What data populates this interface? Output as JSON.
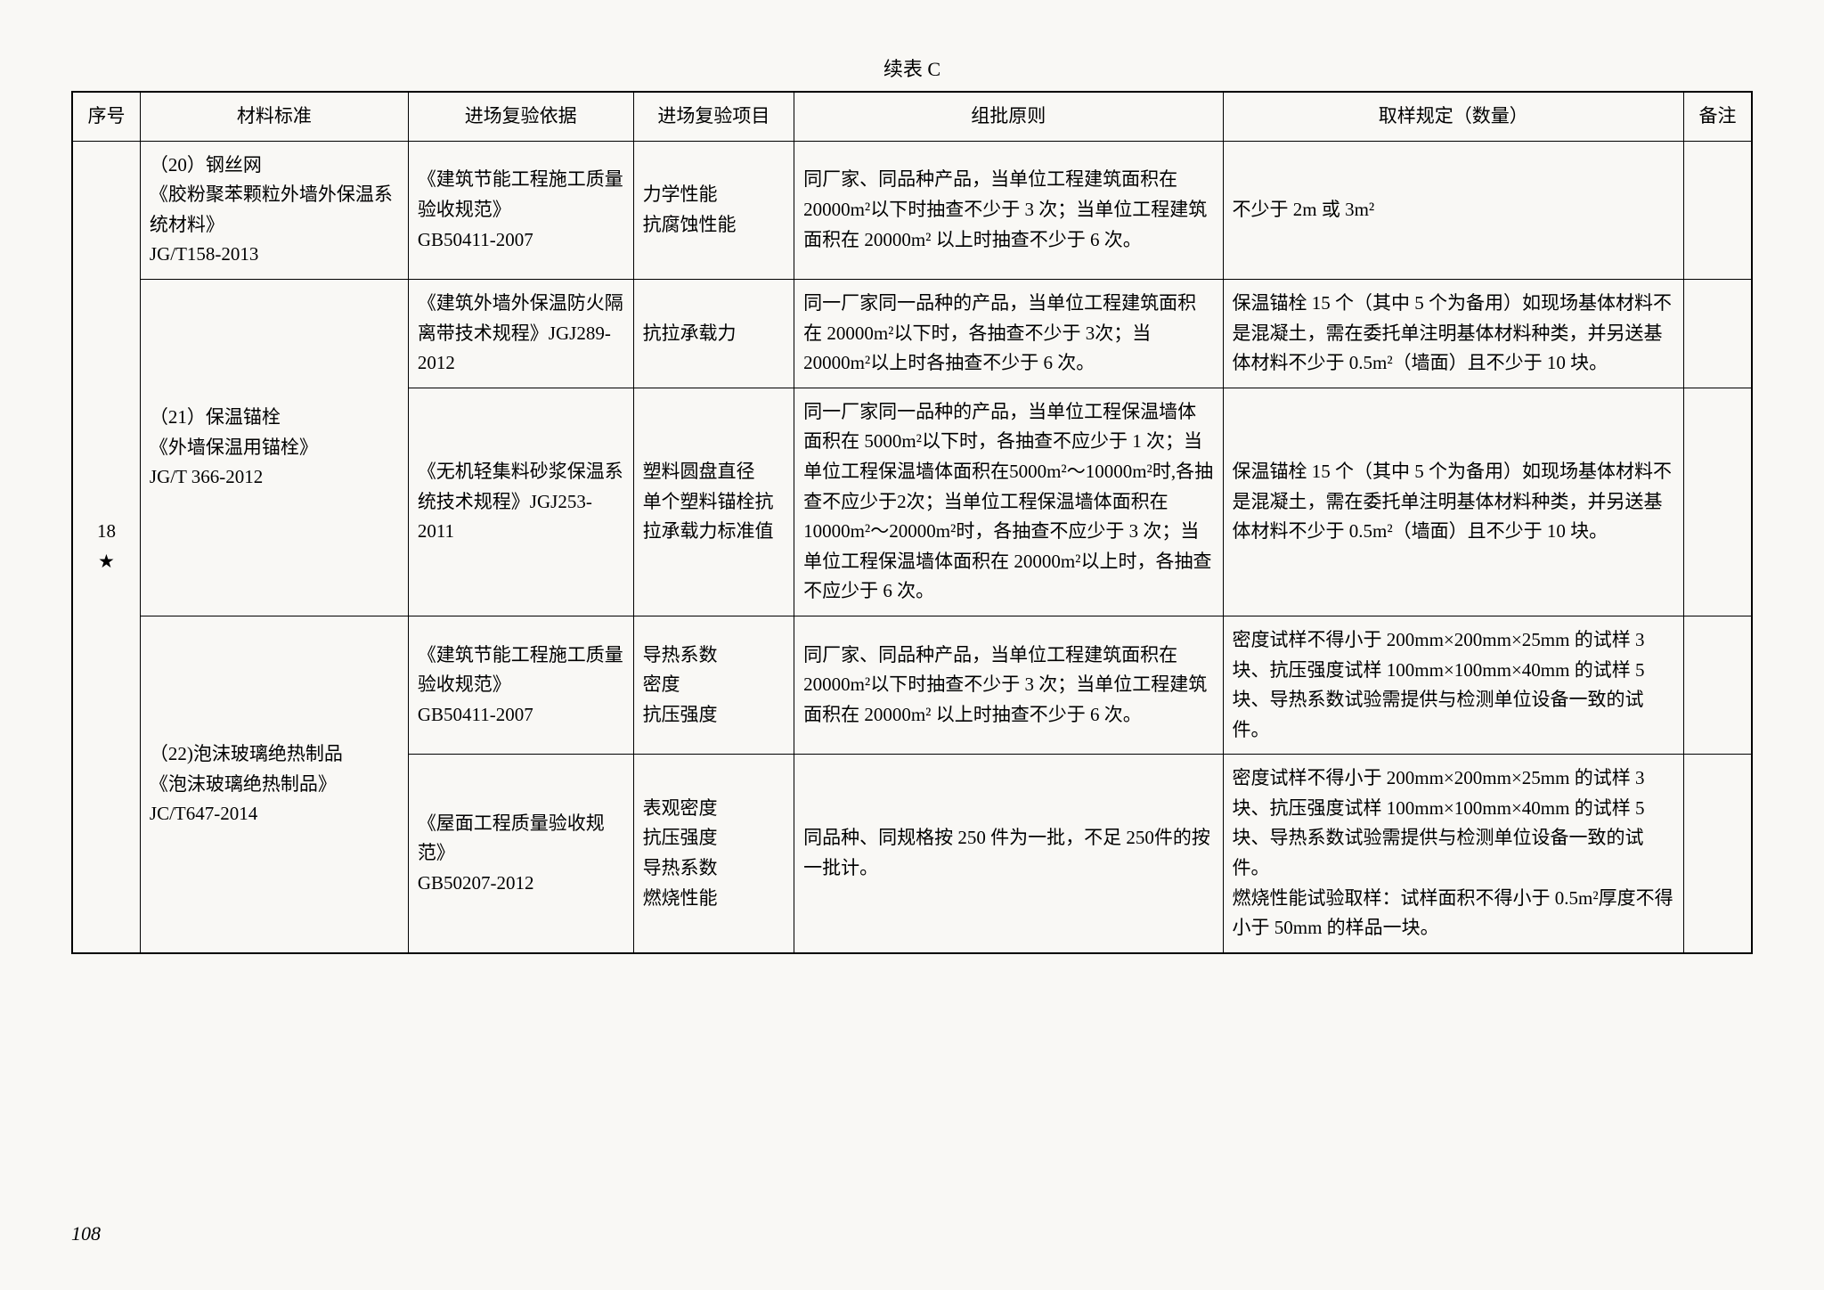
{
  "caption": "续表 C",
  "pageNumber": "108",
  "headers": {
    "seq": "序号",
    "standard": "材料标准",
    "basis": "进场复验依据",
    "item": "进场复验项目",
    "group": "组批原则",
    "sample": "取样规定（数量）",
    "note": "备注"
  },
  "seqLabel": "18\n★",
  "rows": [
    {
      "standard": "（20）钢丝网\n《胶粉聚苯颗粒外墙外保温系统材料》\nJG/T158-2013",
      "basis": "《建筑节能工程施工质量验收规范》\nGB50411-2007",
      "item": "力学性能\n抗腐蚀性能",
      "group": "同厂家、同品种产品，当单位工程建筑面积在 20000m²以下时抽查不少于 3 次；当单位工程建筑面积在 20000m² 以上时抽查不少于 6 次。",
      "sample": "不少于 2m 或 3m²",
      "note": ""
    },
    {
      "standard": "（21）保温锚栓\n《外墙保温用锚栓》\nJG/T 366-2012",
      "basis": "《建筑外墙外保温防火隔离带技术规程》JGJ289-2012",
      "item": "抗拉承载力",
      "group": "同一厂家同一品种的产品，当单位工程建筑面积在 20000m²以下时，各抽查不少于 3次；当 20000m²以上时各抽查不少于 6 次。",
      "sample": "保温锚栓 15 个（其中 5 个为备用）如现场基体材料不是混凝土，需在委托单注明基体材料种类，并另送基体材料不少于 0.5m²（墙面）且不少于 10 块。",
      "note": ""
    },
    {
      "basis": "《无机轻集料砂浆保温系统技术规程》JGJ253-2011",
      "item": "塑料圆盘直径\n单个塑料锚栓抗拉承载力标准值",
      "group": "同一厂家同一品种的产品，当单位工程保温墙体面积在 5000m²以下时，各抽查不应少于 1 次；当单位工程保温墙体面积在5000m²～10000m²时,各抽查不应少于2次；当单位工程保温墙体面积在 10000m²～20000m²时，各抽查不应少于 3 次；当单位工程保温墙体面积在 20000m²以上时，各抽查不应少于 6 次。",
      "sample": "保温锚栓 15 个（其中 5 个为备用）如现场基体材料不是混凝土，需在委托单注明基体材料种类，并另送基体材料不少于 0.5m²（墙面）且不少于 10 块。",
      "note": ""
    },
    {
      "standard": "（22)泡沫玻璃绝热制品\n《泡沫玻璃绝热制品》\nJC/T647-2014",
      "basis": "《建筑节能工程施工质量验收规范》\nGB50411-2007",
      "item": "导热系数\n密度\n抗压强度",
      "group": "同厂家、同品种产品，当单位工程建筑面积在 20000m²以下时抽查不少于 3 次；当单位工程建筑面积在 20000m² 以上时抽查不少于 6 次。",
      "sample": "密度试样不得小于 200mm×200mm×25mm 的试样 3 块、抗压强度试样 100mm×100mm×40mm 的试样 5 块、导热系数试验需提供与检测单位设备一致的试件。",
      "note": ""
    },
    {
      "basis": "《屋面工程质量验收规范》\nGB50207-2012",
      "item": "表观密度\n抗压强度\n导热系数\n燃烧性能",
      "group": "同品种、同规格按 250 件为一批，不足 250件的按一批计。",
      "sample": "密度试样不得小于 200mm×200mm×25mm 的试样 3 块、抗压强度试样 100mm×100mm×40mm 的试样 5 块、导热系数试验需提供与检测单位设备一致的试件。\n燃烧性能试验取样：试样面积不得小于 0.5m²厚度不得小于 50mm 的样品一块。",
      "note": ""
    }
  ]
}
